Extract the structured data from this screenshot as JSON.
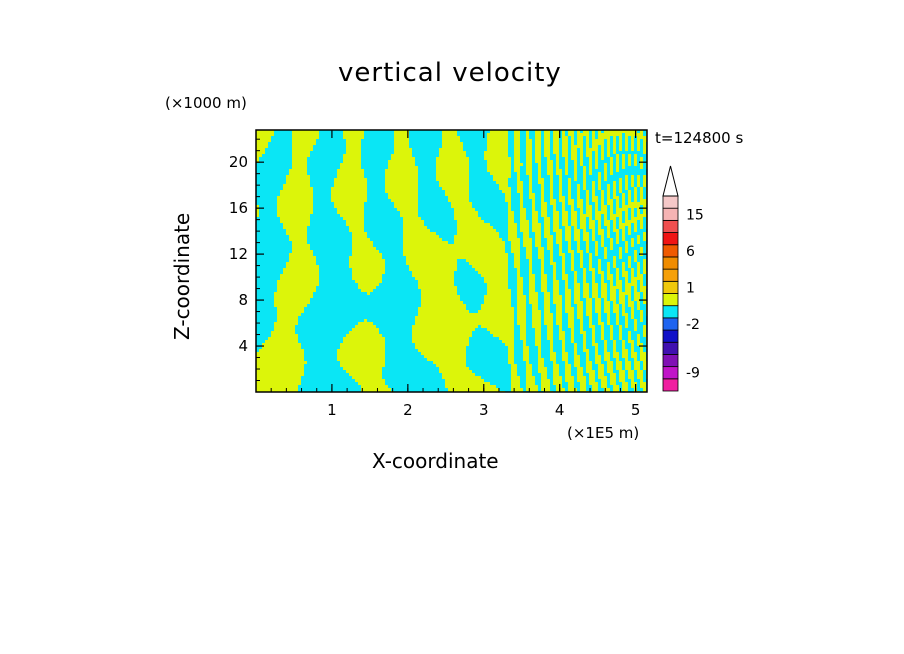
{
  "chart_data": {
    "type": "heatmap",
    "title": "vertical velocity",
    "xlabel": "X-coordinate",
    "ylabel": "Z-coordinate",
    "x_unit": "(×1E5 m)",
    "z_unit": "(×1000 m)",
    "time_label": "t=124800 s",
    "xlim": [
      0,
      5.15
    ],
    "ylim": [
      0,
      22.8
    ],
    "x_ticks": [
      1,
      2,
      3,
      4,
      5
    ],
    "y_ticks": [
      4,
      8,
      12,
      16,
      20
    ],
    "field_colors": {
      "positive": "#dcf50a",
      "negative": "#0ae6f5",
      "outline": "#111111"
    },
    "colorbar": {
      "tick_labels": [
        "15",
        "6",
        "1",
        "-2",
        "-9"
      ],
      "tick_values": [
        15,
        6,
        1,
        -2,
        -9
      ],
      "levels": [
        {
          "value": -11,
          "color": "#f01ea0"
        },
        {
          "value": -9,
          "color": "#c014c8"
        },
        {
          "value": -7,
          "color": "#8010b4"
        },
        {
          "value": -5,
          "color": "#4010b0"
        },
        {
          "value": -3,
          "color": "#1010c8"
        },
        {
          "value": -2,
          "color": "#1e64f0"
        },
        {
          "value": -1,
          "color": "#0ae6f5"
        },
        {
          "value": 0,
          "color": "#dcf50a"
        },
        {
          "value": 1,
          "color": "#f0c80a"
        },
        {
          "value": 2,
          "color": "#f5a00a"
        },
        {
          "value": 4,
          "color": "#f08c00"
        },
        {
          "value": 6,
          "color": "#f05a00"
        },
        {
          "value": 9,
          "color": "#f01414"
        },
        {
          "value": 12,
          "color": "#f05050"
        },
        {
          "value": 15,
          "color": "#f5b4b4"
        },
        {
          "value": 18,
          "color": "#f5c8c8"
        }
      ]
    }
  }
}
